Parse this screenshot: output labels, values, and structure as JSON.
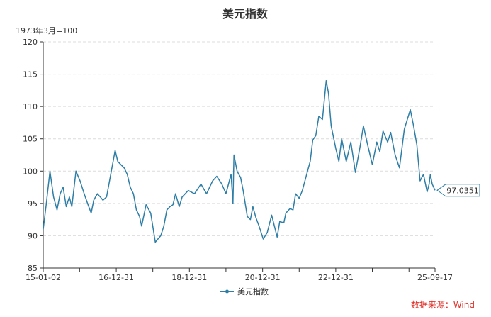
{
  "chart_data": {
    "type": "line",
    "title": "美元指数",
    "unit_label": "1973年3月=100",
    "series": [
      {
        "name": "美元指数",
        "color": "#2e7ea6",
        "points": [
          [
            "2015-01-02",
            91.0
          ],
          [
            "2015-02-01",
            94.8
          ],
          [
            "2015-03-10",
            100.0
          ],
          [
            "2015-04-15",
            96.0
          ],
          [
            "2015-05-20",
            94.0
          ],
          [
            "2015-06-20",
            96.5
          ],
          [
            "2015-07-20",
            97.5
          ],
          [
            "2015-08-20",
            94.5
          ],
          [
            "2015-09-20",
            96.0
          ],
          [
            "2015-10-15",
            94.5
          ],
          [
            "2015-11-25",
            100.0
          ],
          [
            "2016-01-05",
            98.5
          ],
          [
            "2016-02-15",
            96.5
          ],
          [
            "2016-03-20",
            95.0
          ],
          [
            "2016-04-25",
            93.5
          ],
          [
            "2016-05-20",
            95.5
          ],
          [
            "2016-06-25",
            96.5
          ],
          [
            "2016-07-25",
            96.0
          ],
          [
            "2016-08-20",
            95.5
          ],
          [
            "2016-09-25",
            96.0
          ],
          [
            "2016-10-25",
            98.5
          ],
          [
            "2016-12-20",
            103.2
          ],
          [
            "2017-01-15",
            101.5
          ],
          [
            "2017-02-15",
            101.0
          ],
          [
            "2017-03-20",
            100.5
          ],
          [
            "2017-04-20",
            99.5
          ],
          [
            "2017-05-20",
            97.5
          ],
          [
            "2017-06-20",
            96.5
          ],
          [
            "2017-07-20",
            94.0
          ],
          [
            "2017-08-20",
            93.0
          ],
          [
            "2017-09-10",
            91.5
          ],
          [
            "2017-10-25",
            94.8
          ],
          [
            "2017-12-10",
            93.5
          ],
          [
            "2018-01-25",
            89.0
          ],
          [
            "2018-02-20",
            89.5
          ],
          [
            "2018-03-20",
            90.0
          ],
          [
            "2018-04-20",
            91.5
          ],
          [
            "2018-05-20",
            94.0
          ],
          [
            "2018-06-20",
            94.5
          ],
          [
            "2018-07-20",
            94.8
          ],
          [
            "2018-08-15",
            96.5
          ],
          [
            "2018-09-20",
            94.5
          ],
          [
            "2018-10-20",
            96.0
          ],
          [
            "2018-12-20",
            97.0
          ],
          [
            "2019-02-20",
            96.5
          ],
          [
            "2019-04-25",
            98.0
          ],
          [
            "2019-06-20",
            96.5
          ],
          [
            "2019-08-20",
            98.5
          ],
          [
            "2019-09-30",
            99.2
          ],
          [
            "2019-11-20",
            98.0
          ],
          [
            "2019-12-31",
            96.5
          ],
          [
            "2020-02-20",
            99.5
          ],
          [
            "2020-03-10",
            95.0
          ],
          [
            "2020-03-20",
            102.5
          ],
          [
            "2020-04-20",
            100.0
          ],
          [
            "2020-05-25",
            99.0
          ],
          [
            "2020-06-20",
            97.0
          ],
          [
            "2020-07-31",
            93.0
          ],
          [
            "2020-08-31",
            92.5
          ],
          [
            "2020-09-25",
            94.5
          ],
          [
            "2020-10-25",
            92.8
          ],
          [
            "2020-11-25",
            91.5
          ],
          [
            "2021-01-06",
            89.5
          ],
          [
            "2021-02-15",
            90.5
          ],
          [
            "2021-03-31",
            93.2
          ],
          [
            "2021-05-25",
            89.8
          ],
          [
            "2021-06-20",
            92.2
          ],
          [
            "2021-07-31",
            92.0
          ],
          [
            "2021-08-20",
            93.5
          ],
          [
            "2021-09-30",
            94.2
          ],
          [
            "2021-10-31",
            94.0
          ],
          [
            "2021-11-25",
            96.5
          ],
          [
            "2021-12-31",
            95.8
          ],
          [
            "2022-01-31",
            97.0
          ],
          [
            "2022-03-07",
            99.0
          ],
          [
            "2022-04-20",
            101.5
          ],
          [
            "2022-05-15",
            104.8
          ],
          [
            "2022-06-15",
            105.5
          ],
          [
            "2022-07-15",
            108.5
          ],
          [
            "2022-08-20",
            108.0
          ],
          [
            "2022-09-27",
            114.0
          ],
          [
            "2022-10-20",
            112.0
          ],
          [
            "2022-11-15",
            107.0
          ],
          [
            "2022-12-31",
            103.5
          ],
          [
            "2023-01-31",
            101.5
          ],
          [
            "2023-02-28",
            105.0
          ],
          [
            "2023-04-15",
            101.5
          ],
          [
            "2023-05-31",
            104.5
          ],
          [
            "2023-07-15",
            99.8
          ],
          [
            "2023-08-31",
            103.8
          ],
          [
            "2023-10-03",
            107.0
          ],
          [
            "2023-11-15",
            104.0
          ],
          [
            "2023-12-31",
            101.0
          ],
          [
            "2024-02-14",
            104.5
          ],
          [
            "2024-03-15",
            103.0
          ],
          [
            "2024-04-16",
            106.2
          ],
          [
            "2024-06-01",
            104.5
          ],
          [
            "2024-07-01",
            106.0
          ],
          [
            "2024-08-15",
            102.5
          ],
          [
            "2024-09-27",
            100.5
          ],
          [
            "2024-11-15",
            106.5
          ],
          [
            "2025-01-13",
            109.5
          ],
          [
            "2025-02-15",
            107.0
          ],
          [
            "2025-03-20",
            104.0
          ],
          [
            "2025-04-21",
            98.5
          ],
          [
            "2025-05-25",
            99.5
          ],
          [
            "2025-06-30",
            96.8
          ],
          [
            "2025-07-20",
            98.0
          ],
          [
            "2025-08-01",
            99.5
          ],
          [
            "2025-08-20",
            98.0
          ],
          [
            "2025-09-17",
            97.0351
          ]
        ]
      }
    ],
    "y_axis": {
      "min": 85,
      "max": 120,
      "step": 5
    },
    "x_axis": {
      "start": "2015-01-02",
      "end": "2025-09-17",
      "tick_labels": [
        {
          "date": "2015-01-02",
          "label": "15-01-02"
        },
        {
          "date": "2016-12-31",
          "label": "16-12-31"
        },
        {
          "date": "2018-12-31",
          "label": "18-12-31"
        },
        {
          "date": "2020-12-31",
          "label": "20-12-31"
        },
        {
          "date": "2022-12-31",
          "label": "22-12-31"
        },
        {
          "date": "2025-09-17",
          "label": "25-09-17"
        }
      ],
      "minor_tick_dates": [
        "2015-12-31",
        "2017-12-31",
        "2019-12-31",
        "2021-12-31",
        "2023-12-31",
        "2024-12-31"
      ]
    },
    "last_value_label": "97.0351",
    "legend_position": "bottom-center",
    "grid": true,
    "grid_style": "dashed horizontal"
  },
  "source_text": "数据来源：Wind"
}
